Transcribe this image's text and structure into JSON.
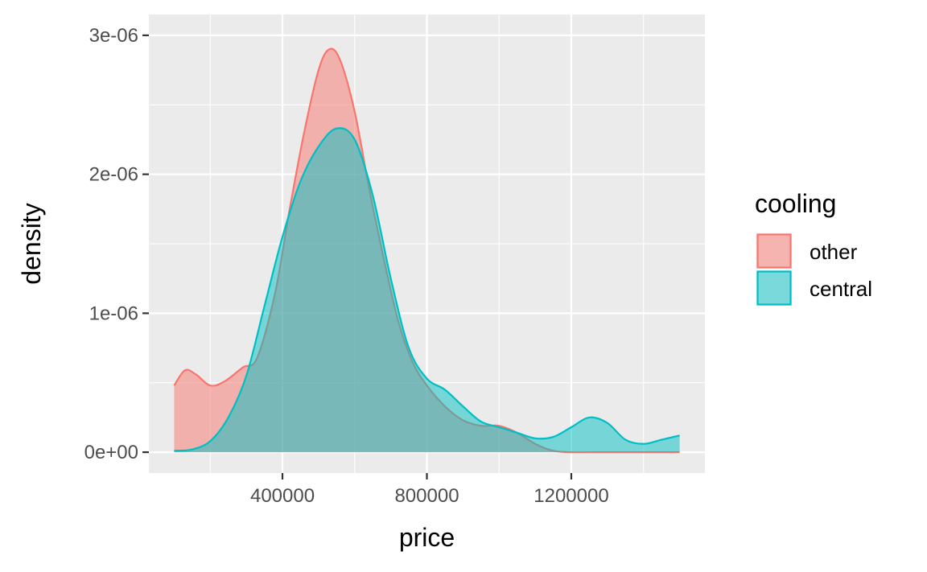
{
  "chart_data": {
    "type": "area",
    "chart_subtype": "density",
    "xlabel": "price",
    "ylabel": "density",
    "xlim": [
      100000,
      1500000
    ],
    "ylim": [
      0,
      3e-06
    ],
    "x_ticks": [
      400000,
      800000,
      1200000
    ],
    "x_tick_labels": [
      "400000",
      "800000",
      "1200000"
    ],
    "y_ticks": [
      0,
      1e-06,
      2e-06,
      3e-06
    ],
    "y_tick_labels": [
      "0e+00",
      "1e-06",
      "2e-06",
      "3e-06"
    ],
    "grid": true,
    "legend": {
      "title": "cooling",
      "position": "right",
      "entries": [
        "other",
        "central"
      ]
    },
    "series": [
      {
        "name": "other",
        "color": "#F8766D",
        "points": [
          [
            100000,
            4.8e-07
          ],
          [
            130000,
            5.9e-07
          ],
          [
            160000,
            5.6e-07
          ],
          [
            200000,
            4.8e-07
          ],
          [
            240000,
            5.1e-07
          ],
          [
            290000,
            6.1e-07
          ],
          [
            330000,
            6.8e-07
          ],
          [
            380000,
            1.15e-06
          ],
          [
            420000,
            1.75e-06
          ],
          [
            460000,
            2.3e-06
          ],
          [
            500000,
            2.75e-06
          ],
          [
            530000,
            2.9e-06
          ],
          [
            560000,
            2.82e-06
          ],
          [
            600000,
            2.45e-06
          ],
          [
            640000,
            1.9e-06
          ],
          [
            680000,
            1.4e-06
          ],
          [
            720000,
            9.5e-07
          ],
          [
            760000,
            6.5e-07
          ],
          [
            800000,
            4.8e-07
          ],
          [
            850000,
            3.3e-07
          ],
          [
            900000,
            2.3e-07
          ],
          [
            950000,
            1.9e-07
          ],
          [
            1000000,
            1.9e-07
          ],
          [
            1050000,
            1.4e-07
          ],
          [
            1100000,
            6e-08
          ],
          [
            1150000,
            1e-08
          ],
          [
            1200000,
            0
          ],
          [
            1300000,
            0
          ],
          [
            1400000,
            0
          ],
          [
            1500000,
            0
          ]
        ]
      },
      {
        "name": "central",
        "color": "#00BFC4",
        "points": [
          [
            100000,
            1e-08
          ],
          [
            150000,
            2e-08
          ],
          [
            200000,
            8e-08
          ],
          [
            250000,
            2.5e-07
          ],
          [
            300000,
            5.5e-07
          ],
          [
            350000,
            1.05e-06
          ],
          [
            400000,
            1.55e-06
          ],
          [
            450000,
            1.95e-06
          ],
          [
            500000,
            2.2e-06
          ],
          [
            550000,
            2.33e-06
          ],
          [
            600000,
            2.25e-06
          ],
          [
            650000,
            1.85e-06
          ],
          [
            700000,
            1.25e-06
          ],
          [
            750000,
            7.5e-07
          ],
          [
            800000,
            5.3e-07
          ],
          [
            850000,
            4.5e-07
          ],
          [
            900000,
            3.3e-07
          ],
          [
            950000,
            2.2e-07
          ],
          [
            1000000,
            1.8e-07
          ],
          [
            1050000,
            1.4e-07
          ],
          [
            1100000,
            1e-07
          ],
          [
            1150000,
            1.1e-07
          ],
          [
            1200000,
            1.8e-07
          ],
          [
            1250000,
            2.5e-07
          ],
          [
            1300000,
            2.1e-07
          ],
          [
            1350000,
            9e-08
          ],
          [
            1400000,
            6e-08
          ],
          [
            1450000,
            9e-08
          ],
          [
            1500000,
            1.2e-07
          ]
        ]
      }
    ]
  }
}
